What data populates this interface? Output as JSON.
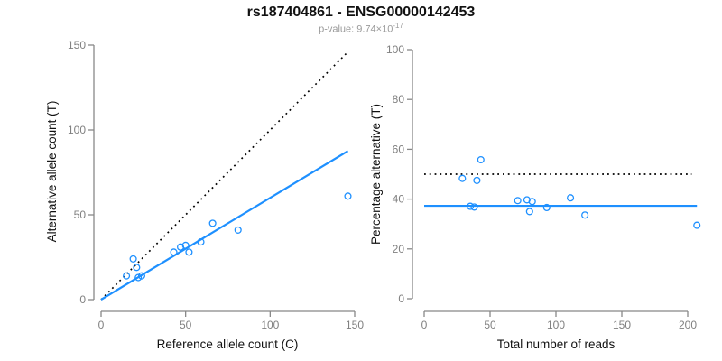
{
  "header": {
    "title": "rs187404861 - ENSG00000142453",
    "subtitle_prefix": "p-value: 9.74×10",
    "subtitle_exponent": "-17"
  },
  "colors": {
    "accent_blue": "#1E90FF",
    "dotted_line_black": "#000000",
    "axis_gray": "#888888",
    "tick_label_gray": "#808080",
    "axis_title_black": "#111111",
    "subtitle_gray": "#9a9a9a",
    "title_black": "#111111"
  },
  "chart_data": [
    {
      "id": "allele-count-scatter",
      "type": "scatter",
      "title": "",
      "xlabel": "Reference allele count (C)",
      "ylabel": "Alternative allele count (T)",
      "xlim": [
        0,
        150
      ],
      "ylim": [
        0,
        150
      ],
      "xticks": [
        0,
        50,
        100,
        150
      ],
      "yticks": [
        0,
        50,
        100,
        150
      ],
      "grid": false,
      "points": [
        [
          15,
          14
        ],
        [
          19,
          24
        ],
        [
          21,
          19
        ],
        [
          22,
          13
        ],
        [
          24,
          14
        ],
        [
          43,
          28
        ],
        [
          47,
          31
        ],
        [
          50,
          32
        ],
        [
          52,
          28
        ],
        [
          59,
          34
        ],
        [
          66,
          45
        ],
        [
          81,
          41
        ],
        [
          146,
          61
        ]
      ],
      "lines": [
        {
          "name": "identity-line",
          "style": "dotted",
          "color": "#000000",
          "x1": 0,
          "y1": 0,
          "x2": 146,
          "y2": 146
        },
        {
          "name": "fit-line",
          "style": "solid",
          "color": "#1E90FF",
          "x1": 0,
          "y1": 0,
          "x2": 146,
          "y2": 87.6
        }
      ]
    },
    {
      "id": "percentage-alternative-scatter",
      "type": "scatter",
      "title": "",
      "xlabel": "Total number of reads",
      "ylabel": "Percentage alternative (T)",
      "xlim": [
        0,
        207
      ],
      "ylim": [
        0,
        100
      ],
      "xticks": [
        0,
        50,
        100,
        150,
        200
      ],
      "yticks": [
        0,
        20,
        40,
        60,
        80,
        100
      ],
      "grid": false,
      "points": [
        [
          29,
          48.3
        ],
        [
          35,
          37.1
        ],
        [
          38,
          36.8
        ],
        [
          40,
          47.5
        ],
        [
          43,
          55.8
        ],
        [
          71,
          39.4
        ],
        [
          78,
          39.7
        ],
        [
          80,
          35.0
        ],
        [
          82,
          39.0
        ],
        [
          93,
          36.6
        ],
        [
          111,
          40.5
        ],
        [
          122,
          33.6
        ],
        [
          207,
          29.5
        ]
      ],
      "lines": [
        {
          "name": "expected-50pct-line",
          "style": "dotted",
          "color": "#000000",
          "x1": 0,
          "y1": 50,
          "x2": 203,
          "y2": 50
        },
        {
          "name": "mean-percentage-line",
          "style": "solid",
          "color": "#1E90FF",
          "x1": 0,
          "y1": 37.3,
          "x2": 207,
          "y2": 37.3
        }
      ]
    }
  ]
}
